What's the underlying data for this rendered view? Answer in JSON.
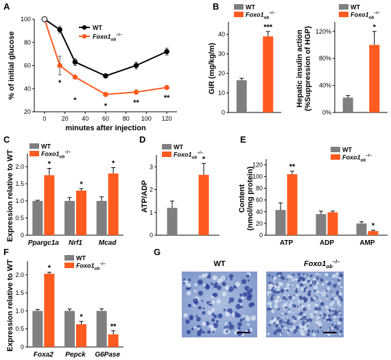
{
  "colors": {
    "wt_bar": "#7f7f7f",
    "ko_bar": "#ff5a1f",
    "wt_line": "#000000",
    "ko_line": "#ff5a1f",
    "stain": "#9bb0d6"
  },
  "legend": {
    "wt": "WT",
    "ko_main": "Foxo1",
    "ko_sub": "ob",
    "ko_sup": "–/–"
  },
  "chart_data": [
    {
      "id": "A",
      "panel": "A",
      "type": "line",
      "xlabel": "minutes after injection",
      "ylabel": "% of initial glucose",
      "xlim": [
        -10,
        130
      ],
      "ylim": [
        20,
        100
      ],
      "xticks": [
        0,
        20,
        40,
        60,
        80,
        100,
        120
      ],
      "yticks": [
        20,
        40,
        60,
        80,
        100
      ],
      "series": [
        {
          "name": "WT",
          "x": [
            0,
            15,
            30,
            60,
            90,
            120
          ],
          "y": [
            100,
            91,
            63,
            51,
            60,
            72
          ],
          "err": [
            0,
            3,
            3,
            1.5,
            3,
            3
          ]
        },
        {
          "name": "Foxo1ob-/-",
          "x": [
            0,
            15,
            30,
            60,
            90,
            120
          ],
          "y": [
            100,
            60,
            50,
            35,
            37,
            41
          ],
          "err": [
            0,
            8,
            1.5,
            1.5,
            1.2,
            1.2
          ]
        }
      ],
      "annotations": [
        {
          "x": 15,
          "y": 43,
          "text": "*"
        },
        {
          "x": 30,
          "y": 28,
          "text": "*"
        },
        {
          "x": 60,
          "y": 23,
          "text": "*"
        },
        {
          "x": 90,
          "y": 26,
          "text": "**"
        },
        {
          "x": 120,
          "y": 30,
          "text": "**"
        }
      ]
    },
    {
      "id": "B1",
      "panel": "B",
      "type": "bar",
      "ylabel": "GIR (mg/kg/m)",
      "ylim": [
        0,
        45
      ],
      "yticks": [
        0,
        10,
        20,
        30,
        40
      ],
      "values": [
        16.5,
        39
      ],
      "errs": [
        1,
        2.5
      ],
      "stars": [
        "",
        "***"
      ]
    },
    {
      "id": "B2",
      "type": "bar",
      "ylabel": "Hepatic insulin action",
      "ylabel2": "(%Suppression of HGP)",
      "ylim": [
        0,
        130
      ],
      "yticks": [
        0,
        40,
        80,
        120
      ],
      "ytick_labels": [
        "0%",
        "40%",
        "80%",
        "120%"
      ],
      "values": [
        22,
        100
      ],
      "errs": [
        3,
        20
      ],
      "stars": [
        "",
        "*"
      ]
    },
    {
      "id": "C",
      "panel": "C",
      "type": "bar",
      "ylabel": "Expression relative to WT",
      "categories": [
        "Ppargc1a",
        "Nrf1",
        "Mcad"
      ],
      "ylim": [
        0,
        2.3
      ],
      "yticks": [
        0,
        0.5,
        1.0,
        1.5,
        2.0
      ],
      "ytick_labels": [
        "0",
        "0.5",
        "1.0",
        "1.5",
        "2.0"
      ],
      "series": [
        {
          "name": "WT",
          "values": [
            1.0,
            1.0,
            1.0
          ],
          "errs": [
            0.02,
            0.1,
            0.12
          ]
        },
        {
          "name": "Foxo1ob-/-",
          "values": [
            1.75,
            1.3,
            1.8
          ],
          "errs": [
            0.2,
            0.06,
            0.17
          ]
        }
      ],
      "stars": [
        "*",
        "*",
        "*"
      ]
    },
    {
      "id": "D",
      "panel": "D",
      "type": "bar",
      "ylabel": "ATP/ADP",
      "ylim": [
        0,
        3.4
      ],
      "yticks": [
        0,
        1,
        2,
        3
      ],
      "values": [
        1.2,
        2.65
      ],
      "errs": [
        0.3,
        0.5
      ],
      "stars": [
        "",
        "*"
      ]
    },
    {
      "id": "E",
      "panel": "E",
      "type": "bar",
      "ylabel": "Content",
      "ylabel2": "(nmol/mg protein)",
      "categories": [
        "ATP",
        "ADP",
        "AMP"
      ],
      "ylim": [
        0,
        125
      ],
      "yticks": [
        0,
        20,
        40,
        60,
        80,
        100,
        120
      ],
      "series": [
        {
          "name": "WT",
          "values": [
            43,
            36,
            20
          ],
          "errs": [
            12,
            5,
            3
          ]
        },
        {
          "name": "Foxo1ob-/-",
          "values": [
            104,
            39,
            7
          ],
          "errs": [
            5,
            2,
            1.5
          ]
        }
      ],
      "stars": [
        "**",
        "",
        "*"
      ]
    },
    {
      "id": "F",
      "panel": "F",
      "type": "bar",
      "ylabel": "Expression relative to WT",
      "categories": [
        "Foxa2",
        "Pepck",
        "G6Pase"
      ],
      "ylim": [
        0,
        2.3
      ],
      "yticks": [
        0,
        0.5,
        1.0,
        1.5,
        2.0
      ],
      "ytick_labels": [
        "0",
        "0.5",
        "1.0",
        "1.5",
        "2.0"
      ],
      "series": [
        {
          "name": "WT",
          "values": [
            1.0,
            1.0,
            1.0
          ],
          "errs": [
            0.04,
            0.05,
            0.06
          ]
        },
        {
          "name": "Foxo1ob-/-",
          "values": [
            2.03,
            0.63,
            0.35
          ],
          "errs": [
            0.04,
            0.08,
            0.1
          ]
        }
      ],
      "stars": [
        "*",
        "*",
        "**"
      ]
    }
  ],
  "panel_g": {
    "letter": "G",
    "wt_label": "WT",
    "ko_main": "Foxo1",
    "ko_sub": "ob",
    "ko_sup": "–/–"
  }
}
